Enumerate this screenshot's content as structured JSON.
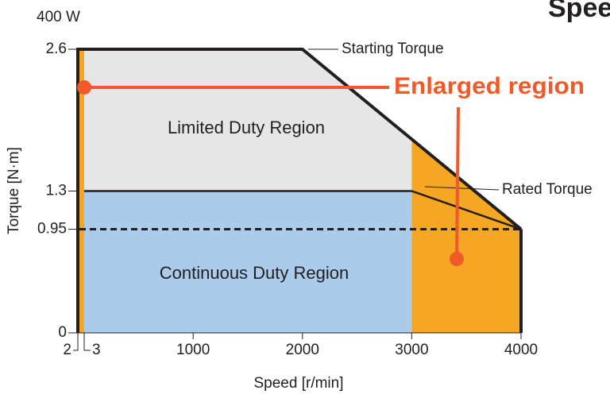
{
  "chart_data": {
    "type": "line",
    "title": "400 W",
    "heading": "Speed",
    "xlabel": "Speed [r/min]",
    "ylabel": "Torque [N·m]",
    "xlim": [
      2,
      4000
    ],
    "ylim": [
      0,
      2.6
    ],
    "xticks": [
      2,
      3,
      1000,
      2000,
      3000,
      4000
    ],
    "yticks": [
      0,
      0.95,
      1.3,
      2.6
    ],
    "series": [
      {
        "name": "Starting Torque",
        "color": "#231f20",
        "x": [
          2,
          2000,
          4000
        ],
        "values": [
          2.6,
          2.6,
          0.95
        ]
      },
      {
        "name": "Rated Torque",
        "color": "#231f20",
        "x": [
          3,
          3000,
          4000
        ],
        "values": [
          1.3,
          1.3,
          0.95
        ]
      }
    ],
    "threshold": 0.95,
    "regions": {
      "limited": "Limited Duty Region",
      "continuous": "Continuous Duty Region",
      "enlarged": "Enlarged region"
    },
    "colors": {
      "limited": "#e6e6e6",
      "continuous": "#aacbea",
      "orange": "#f5a623",
      "accent": "#f05a28"
    }
  }
}
